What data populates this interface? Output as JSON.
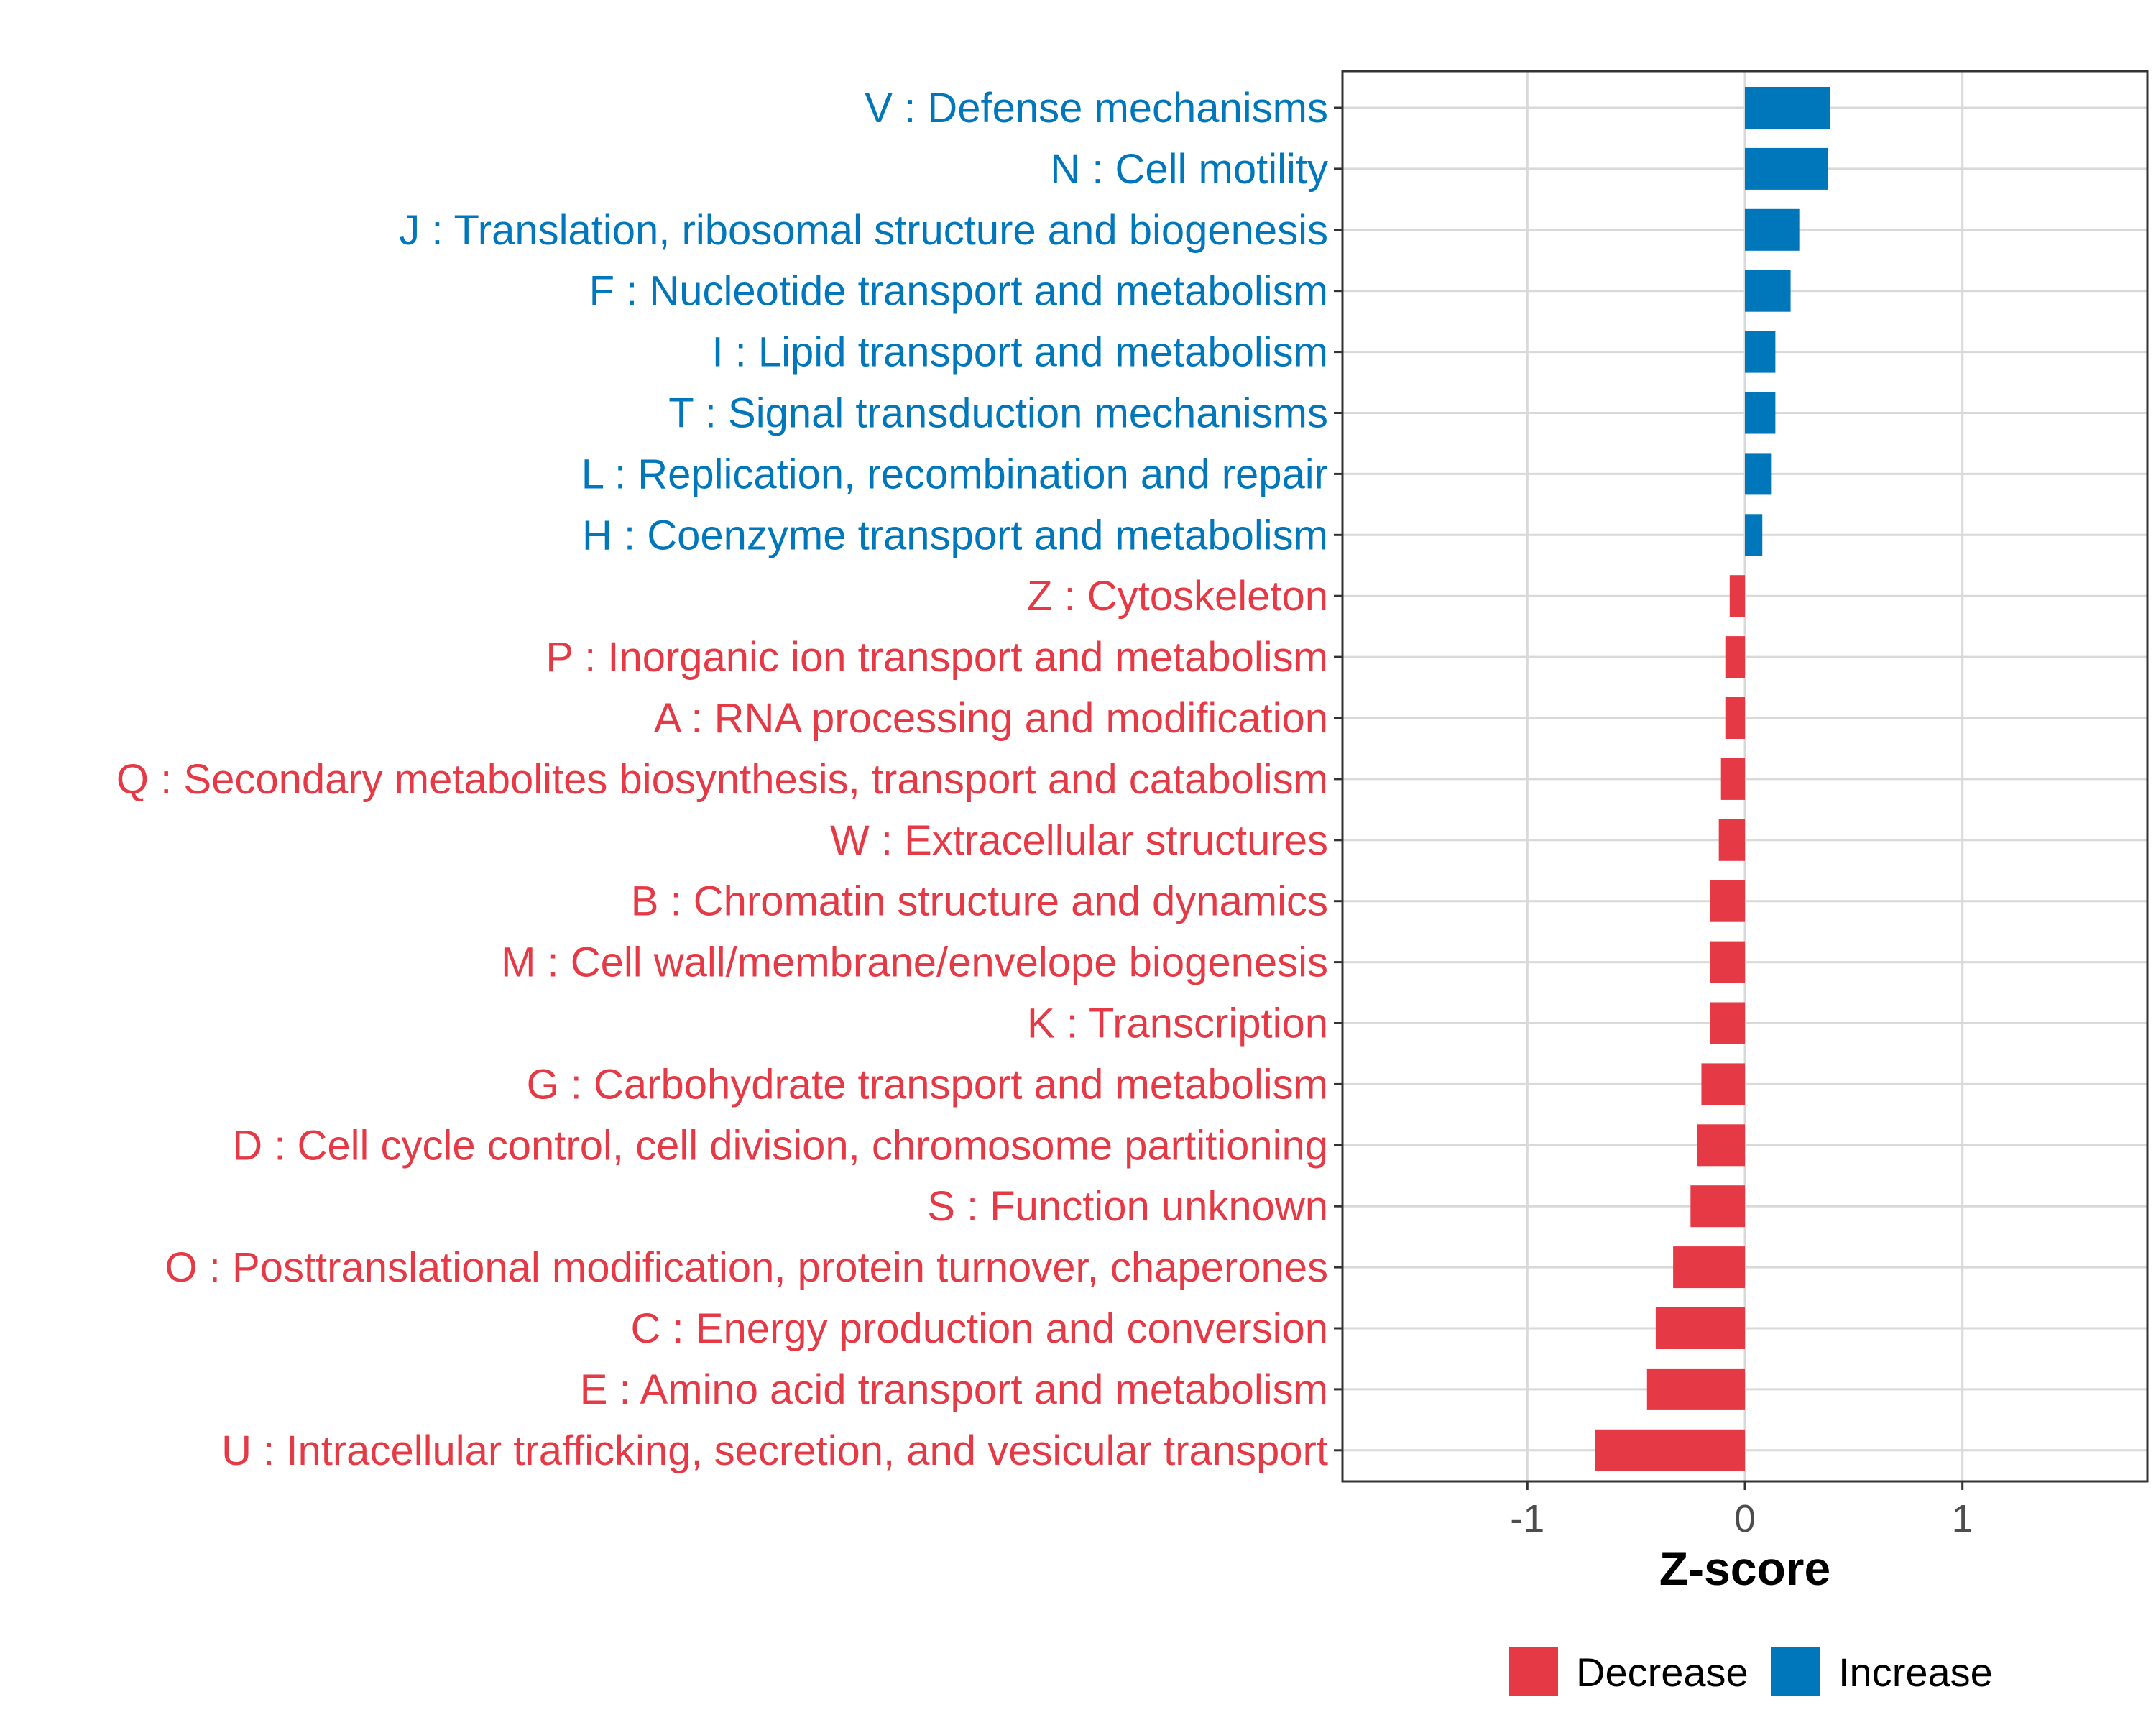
{
  "chart_data": {
    "type": "bar",
    "orientation": "horizontal",
    "title": "",
    "xlabel": "Z-score",
    "ylabel": "",
    "xlim": [
      -1.85,
      1.85
    ],
    "xticks": [
      -1,
      0,
      1
    ],
    "xtick_labels": [
      "-1",
      "0",
      "1"
    ],
    "grid": true,
    "legend_position": "bottom",
    "legend": [
      {
        "name": "Decrease",
        "color": "#E63946"
      },
      {
        "name": "Increase",
        "color": "#0077BB"
      }
    ],
    "categories": [
      "V : Defense mechanisms",
      "N : Cell motility",
      "J : Translation, ribosomal structure and biogenesis",
      "F : Nucleotide transport and metabolism",
      "I : Lipid transport and metabolism",
      "T : Signal transduction mechanisms",
      "L : Replication, recombination and repair",
      "H : Coenzyme transport and metabolism",
      "Z : Cytoskeleton",
      "P : Inorganic ion transport and metabolism",
      "A : RNA processing and modification",
      "Q : Secondary metabolites biosynthesis, transport and catabolism",
      "W : Extracellular structures",
      "B : Chromatin structure and dynamics",
      "M : Cell wall/membrane/envelope biogenesis",
      "K : Transcription",
      "G : Carbohydrate transport and metabolism",
      "D : Cell cycle control, cell division, chromosome partitioning",
      "S : Function unknown",
      "O : Posttranslational modification, protein turnover, chaperones",
      "C : Energy production and conversion",
      "E : Amino acid transport and metabolism",
      "U : Intracellular trafficking, secretion, and vesicular transport"
    ],
    "values": [
      0.39,
      0.38,
      0.25,
      0.21,
      0.14,
      0.14,
      0.12,
      0.08,
      -0.07,
      -0.09,
      -0.09,
      -0.11,
      -0.12,
      -0.16,
      -0.16,
      -0.16,
      -0.2,
      -0.22,
      -0.25,
      -0.33,
      -0.41,
      -0.45,
      -0.69
    ],
    "groups": [
      "Increase",
      "Increase",
      "Increase",
      "Increase",
      "Increase",
      "Increase",
      "Increase",
      "Increase",
      "Decrease",
      "Decrease",
      "Decrease",
      "Decrease",
      "Decrease",
      "Decrease",
      "Decrease",
      "Decrease",
      "Decrease",
      "Decrease",
      "Decrease",
      "Decrease",
      "Decrease",
      "Decrease",
      "Decrease"
    ]
  }
}
